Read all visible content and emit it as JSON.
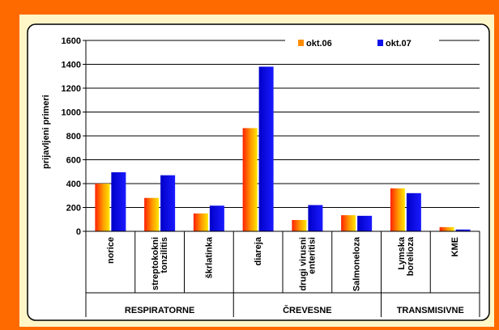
{
  "chart_data": {
    "type": "bar",
    "title": "",
    "ylabel": "prijavljeni primeri",
    "xlabel": "",
    "ylim": [
      0,
      1600
    ],
    "yticks": [
      0,
      200,
      400,
      600,
      800,
      1000,
      1200,
      1400,
      1600
    ],
    "grid": true,
    "legend_position": "top-right",
    "categories": [
      "norice",
      "streptokokni tonzilitis",
      "škrlatinka",
      "diareja",
      "drugi virusni enteritisi",
      "Salmoneloza",
      "Lymska borelioza",
      "KME"
    ],
    "category_lines": [
      [
        "norice"
      ],
      [
        "streptokokni",
        "tonzilitis"
      ],
      [
        "škrlatinka"
      ],
      [
        "diareja"
      ],
      [
        "drugi virusni",
        "enteritisi"
      ],
      [
        "Salmoneloza"
      ],
      [
        "Lymska",
        "borelioza"
      ],
      [
        "KME"
      ]
    ],
    "groups": [
      {
        "label": "RESPIRATORNE",
        "start": 0,
        "end": 2
      },
      {
        "label": "ČREVESNE",
        "start": 3,
        "end": 5
      },
      {
        "label": "TRANSMISIVNE",
        "start": 6,
        "end": 7
      }
    ],
    "series": [
      {
        "name": "okt.06",
        "values": [
          400,
          280,
          150,
          865,
          95,
          135,
          360,
          35
        ],
        "color": "#ff8c00"
      },
      {
        "name": "okt.07",
        "values": [
          495,
          470,
          215,
          1380,
          220,
          130,
          320,
          15
        ],
        "color": "#1010ee"
      }
    ]
  }
}
